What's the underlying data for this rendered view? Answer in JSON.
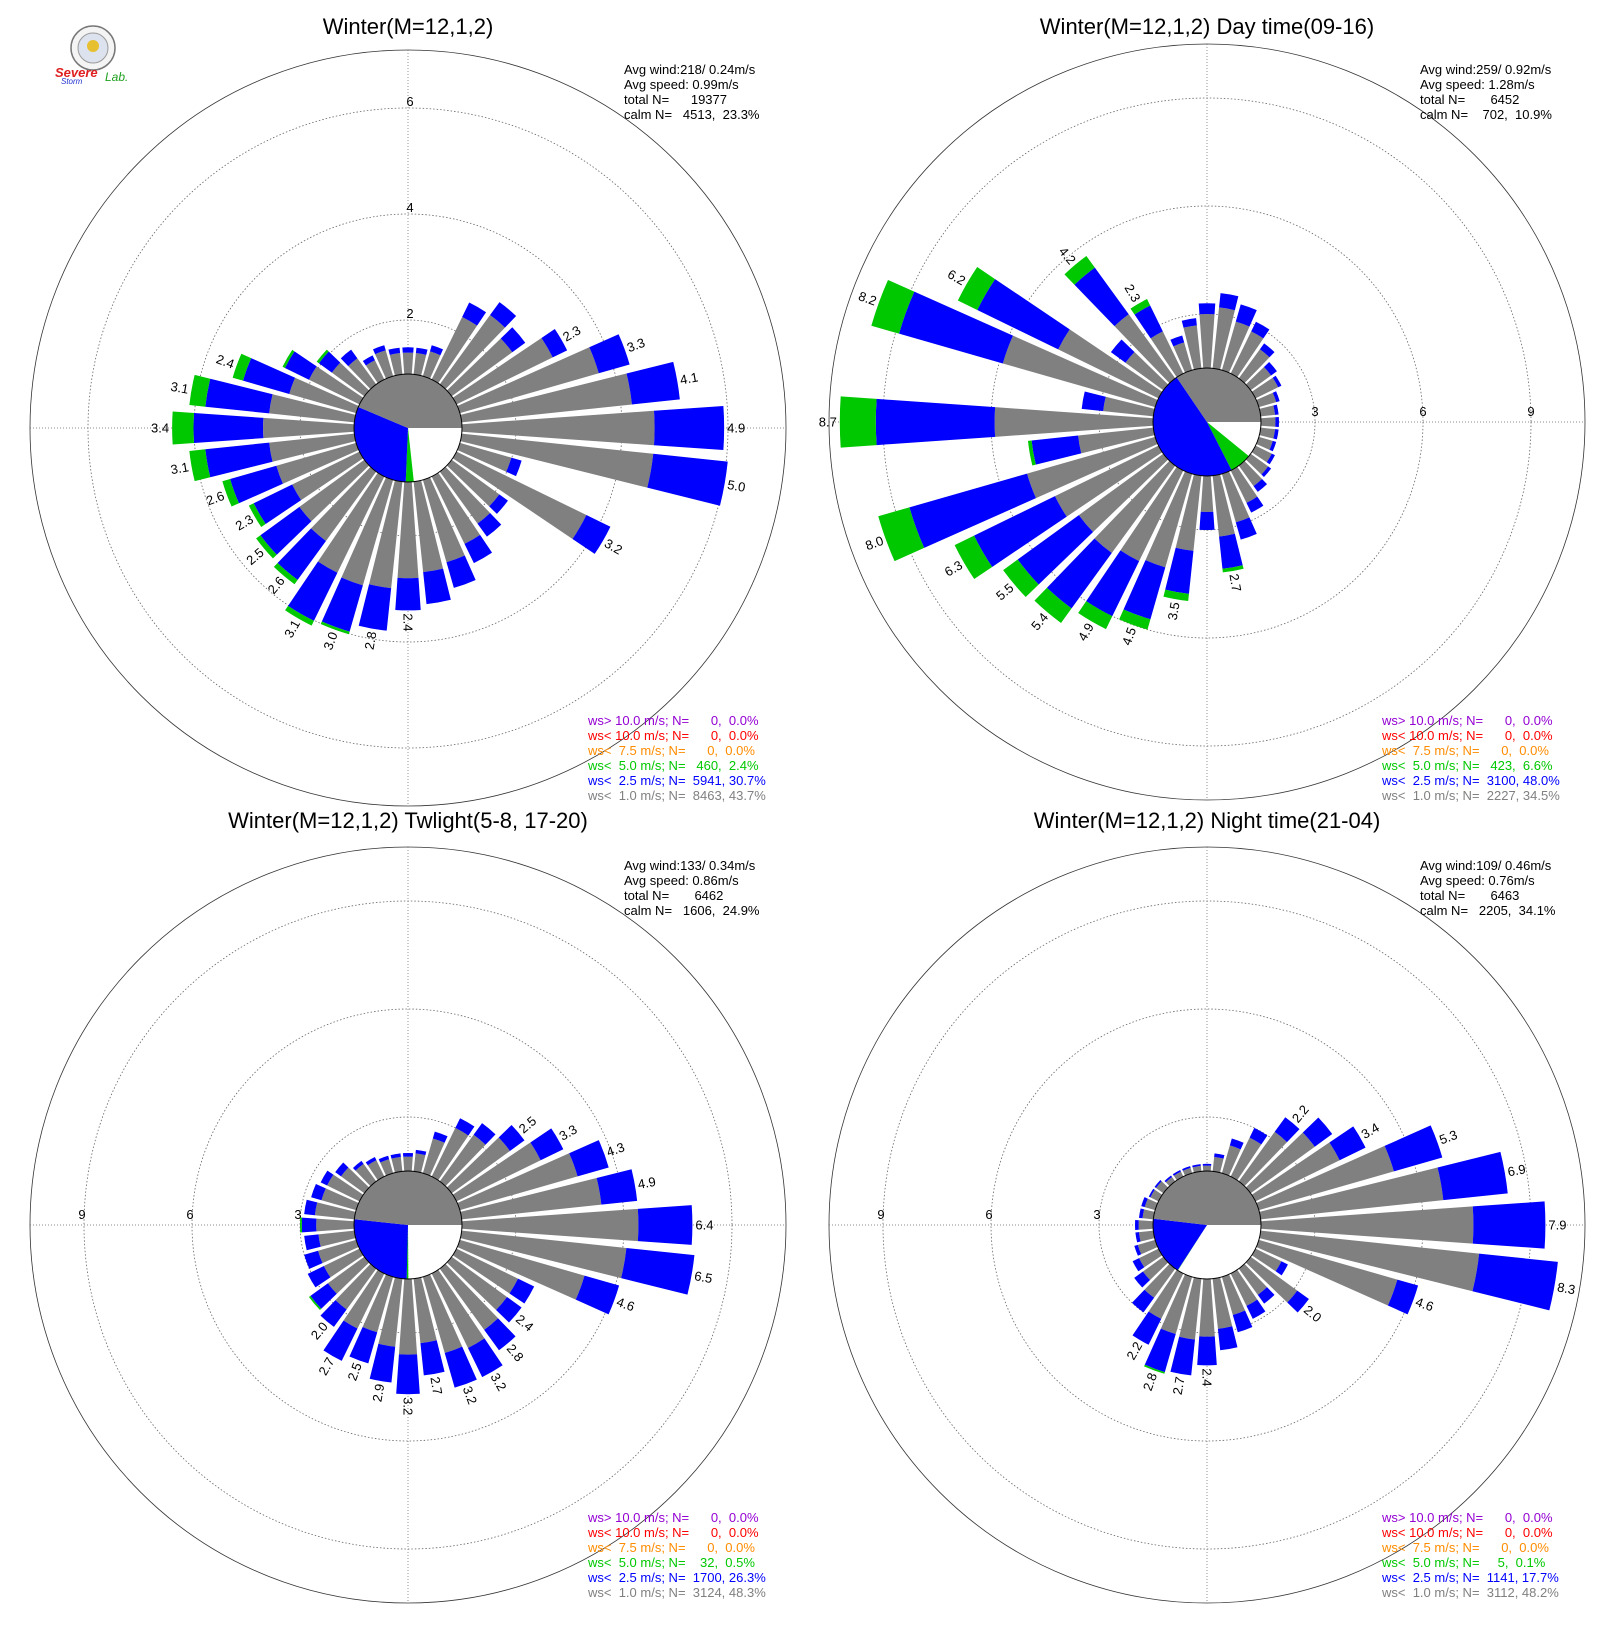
{
  "logo": {
    "text_main": "Severe",
    "text_sub": "Storm",
    "text_lab": "Lab."
  },
  "colors": {
    "calm": "#ffffff",
    "lt1": "#808080",
    "lt2_5": "#0000ff",
    "lt5": "#00c800",
    "lt7_5": "#ff8c00",
    "lt10": "#ff0000",
    "gt10": "#9400d3",
    "grid": "#666666"
  },
  "chart_data": [
    {
      "type": "windrose",
      "title": "Winter(M=12,1,2)",
      "rings": [
        "2",
        "4",
        "6"
      ],
      "stats": [
        "Avg wind:218/ 0.24m/s",
        "Avg speed: 0.99m/s",
        "total N=      19377",
        "calm N=   4513,  23.3%"
      ],
      "legend": [
        "ws> 10.0 m/s; N=      0,  0.0%",
        "ws< 10.0 m/s; N=      0,  0.0%",
        "ws<  7.5 m/s; N=      0,  0.0%",
        "ws<  5.0 m/s; N=   460,  2.4%",
        "ws<  2.5 m/s; N=  5941, 30.7%",
        "ws<  1.0 m/s; N=  8463, 43.7%"
      ],
      "calm_pie": {
        "calm": 23.3,
        "lt1": 43.7,
        "lt2_5": 30.7,
        "lt5": 2.4
      },
      "directions": [
        {
          "deg": 0,
          "t": 0.5,
          "b": 0.1
        },
        {
          "deg": 10,
          "t": 0.5,
          "b": 0.1
        },
        {
          "deg": 20,
          "t": 0.6,
          "b": 0.12
        },
        {
          "deg": 30,
          "t": 1.6,
          "b": 0.3
        },
        {
          "deg": 40,
          "t": 1.9,
          "b": 0.3
        },
        {
          "deg": 50,
          "t": 1.7,
          "b": 0.3
        },
        {
          "deg": 60,
          "t": 2.3,
          "b": 0.3
        },
        {
          "deg": 70,
          "t": 3.3,
          "b": 0.6
        },
        {
          "deg": 80,
          "t": 4.1,
          "b": 0.9
        },
        {
          "deg": 90,
          "t": 4.9,
          "b": 1.3
        },
        {
          "deg": 100,
          "t": 5.0,
          "b": 1.4
        },
        {
          "deg": 110,
          "t": 1.2,
          "b": 0.2
        },
        {
          "deg": 120,
          "t": 3.2,
          "b": 0.5
        },
        {
          "deg": 130,
          "t": 1.3,
          "b": 0.2
        },
        {
          "deg": 140,
          "t": 1.5,
          "b": 0.3
        },
        {
          "deg": 150,
          "t": 1.8,
          "b": 0.4
        },
        {
          "deg": 160,
          "t": 2.1,
          "b": 0.5
        },
        {
          "deg": 170,
          "t": 2.3,
          "b": 0.6
        },
        {
          "deg": 180,
          "t": 2.4,
          "b": 0.6
        },
        {
          "deg": 190,
          "t": 2.8,
          "b": 0.8
        },
        {
          "deg": 200,
          "t": 3.0,
          "b": 0.9,
          "g": 0.05
        },
        {
          "deg": 210,
          "t": 3.1,
          "b": 1.0,
          "g": 0.1
        },
        {
          "deg": 220,
          "t": 2.6,
          "b": 0.9,
          "g": 0.1
        },
        {
          "deg": 230,
          "t": 2.5,
          "b": 0.9,
          "g": 0.1
        },
        {
          "deg": 240,
          "t": 2.3,
          "b": 0.8,
          "g": 0.1
        },
        {
          "deg": 250,
          "t": 2.6,
          "b": 0.9,
          "g": 0.15
        },
        {
          "deg": 260,
          "t": 3.1,
          "b": 1.2,
          "g": 0.3
        },
        {
          "deg": 270,
          "t": 3.4,
          "b": 1.3,
          "g": 0.4
        },
        {
          "deg": 280,
          "t": 3.1,
          "b": 1.2,
          "g": 0.3
        },
        {
          "deg": 290,
          "t": 2.4,
          "b": 0.9,
          "g": 0.2
        },
        {
          "deg": 300,
          "t": 1.6,
          "b": 0.5,
          "g": 0.05
        },
        {
          "deg": 310,
          "t": 1.1,
          "b": 0.3,
          "g": 0.05
        },
        {
          "deg": 320,
          "t": 0.8,
          "b": 0.2
        },
        {
          "deg": 330,
          "t": 0.5,
          "b": 0.1
        },
        {
          "deg": 340,
          "t": 0.6,
          "b": 0.1
        },
        {
          "deg": 350,
          "t": 0.5,
          "b": 0.1
        }
      ],
      "labels": [
        {
          "deg": 60,
          "text": "2.3"
        },
        {
          "deg": 70,
          "text": "3.3"
        },
        {
          "deg": 80,
          "text": "4.1"
        },
        {
          "deg": 90,
          "text": "4.9"
        },
        {
          "deg": 100,
          "text": "5.0"
        },
        {
          "deg": 120,
          "text": "3.2"
        },
        {
          "deg": 180,
          "text": "2.4"
        },
        {
          "deg": 190,
          "text": "2.8"
        },
        {
          "deg": 200,
          "text": "3.0"
        },
        {
          "deg": 210,
          "text": "3.1"
        },
        {
          "deg": 220,
          "text": "2.6"
        },
        {
          "deg": 230,
          "text": "2.5"
        },
        {
          "deg": 240,
          "text": "2.3"
        },
        {
          "deg": 250,
          "text": "2.6"
        },
        {
          "deg": 260,
          "text": "3.1"
        },
        {
          "deg": 270,
          "text": "3.4"
        },
        {
          "deg": 280,
          "text": "3.1"
        },
        {
          "deg": 290,
          "text": "2.4"
        }
      ]
    },
    {
      "type": "windrose",
      "title": "Winter(M=12,1,2) Day time(09-16)",
      "rings": [
        "3",
        "6",
        "9"
      ],
      "stats": [
        "Avg wind:259/ 0.92m/s",
        "Avg speed: 1.28m/s",
        "total N=       6452",
        "calm N=    702,  10.9%"
      ],
      "legend": [
        "ws> 10.0 m/s; N=      0,  0.0%",
        "ws< 10.0 m/s; N=      0,  0.0%",
        "ws<  7.5 m/s; N=      0,  0.0%",
        "ws<  5.0 m/s; N=   423,  6.6%",
        "ws<  2.5 m/s; N=  3100, 48.0%",
        "ws<  1.0 m/s; N=  2227, 34.5%"
      ],
      "calm_pie": {
        "calm": 10.9,
        "lt1": 34.5,
        "lt2_5": 48.0,
        "lt5": 6.6
      },
      "directions": [
        {
          "deg": 0,
          "t": 1.8,
          "b": 0.3
        },
        {
          "deg": 10,
          "t": 2.1,
          "b": 0.4
        },
        {
          "deg": 20,
          "t": 1.9,
          "b": 0.5
        },
        {
          "deg": 30,
          "t": 1.6,
          "b": 0.3
        },
        {
          "deg": 40,
          "t": 1.2,
          "b": 0.2
        },
        {
          "deg": 50,
          "t": 0.9,
          "b": 0.2
        },
        {
          "deg": 60,
          "t": 0.8,
          "b": 0.1
        },
        {
          "deg": 70,
          "t": 0.6,
          "b": 0.1
        },
        {
          "deg": 80,
          "t": 0.5,
          "b": 0.1
        },
        {
          "deg": 90,
          "t": 0.5,
          "b": 0.1
        },
        {
          "deg": 100,
          "t": 0.5,
          "b": 0.1
        },
        {
          "deg": 110,
          "t": 0.5,
          "b": 0.1
        },
        {
          "deg": 120,
          "t": 0.6,
          "b": 0.1
        },
        {
          "deg": 130,
          "t": 0.7,
          "b": 0.1
        },
        {
          "deg": 140,
          "t": 0.9,
          "b": 0.2
        },
        {
          "deg": 150,
          "t": 1.3,
          "b": 0.3
        },
        {
          "deg": 160,
          "t": 1.9,
          "b": 0.5
        },
        {
          "deg": 170,
          "t": 2.7,
          "b": 0.9,
          "g": 0.1
        },
        {
          "deg": 180,
          "t": 1.5,
          "b": 0.5
        },
        {
          "deg": 190,
          "t": 3.5,
          "b": 1.2,
          "g": 0.2
        },
        {
          "deg": 200,
          "t": 4.5,
          "b": 1.5,
          "g": 0.3
        },
        {
          "deg": 210,
          "t": 4.9,
          "b": 1.7,
          "g": 0.4
        },
        {
          "deg": 220,
          "t": 5.4,
          "b": 1.9,
          "g": 0.5
        },
        {
          "deg": 230,
          "t": 5.5,
          "b": 2.1,
          "g": 0.5
        },
        {
          "deg": 240,
          "t": 6.3,
          "b": 2.5,
          "g": 0.6
        },
        {
          "deg": 250,
          "t": 8.0,
          "b": 3.4,
          "g": 0.9
        },
        {
          "deg": 260,
          "t": 3.5,
          "b": 1.3,
          "g": 0.1
        },
        {
          "deg": 270,
          "t": 8.7,
          "b": 3.3,
          "g": 1.0
        },
        {
          "deg": 280,
          "t": 2.0,
          "b": 0.6
        },
        {
          "deg": 290,
          "t": 8.2,
          "b": 3.0,
          "g": 0.8
        },
        {
          "deg": 300,
          "t": 6.2,
          "b": 2.5,
          "g": 0.6
        },
        {
          "deg": 310,
          "t": 1.8,
          "b": 0.5
        },
        {
          "deg": 320,
          "t": 4.2,
          "b": 1.6,
          "g": 0.4
        },
        {
          "deg": 330,
          "t": 2.3,
          "b": 0.8,
          "g": 0.2
        },
        {
          "deg": 340,
          "t": 1.0,
          "b": 0.2
        },
        {
          "deg": 350,
          "t": 1.4,
          "b": 0.2
        }
      ],
      "labels": [
        {
          "deg": 170,
          "text": "2.7"
        },
        {
          "deg": 190,
          "text": "3.5"
        },
        {
          "deg": 200,
          "text": "4.5"
        },
        {
          "deg": 210,
          "text": "4.9"
        },
        {
          "deg": 220,
          "text": "5.4"
        },
        {
          "deg": 230,
          "text": "5.5"
        },
        {
          "deg": 240,
          "text": "6.3"
        },
        {
          "deg": 250,
          "text": "8.0"
        },
        {
          "deg": 270,
          "text": "8.7"
        },
        {
          "deg": 290,
          "text": "8.2"
        },
        {
          "deg": 300,
          "text": "6.2"
        },
        {
          "deg": 320,
          "text": "4.2"
        },
        {
          "deg": 330,
          "text": "2.3"
        }
      ]
    },
    {
      "type": "windrose",
      "title": "Winter(M=12,1,2) Twlight(5-8, 17-20)",
      "rings": [
        "3",
        "6",
        "9"
      ],
      "stats": [
        "Avg wind:133/ 0.34m/s",
        "Avg speed: 0.86m/s",
        "total N=       6462",
        "calm N=   1606,  24.9%"
      ],
      "legend": [
        "ws> 10.0 m/s; N=      0,  0.0%",
        "ws< 10.0 m/s; N=      0,  0.0%",
        "ws<  7.5 m/s; N=      0,  0.0%",
        "ws<  5.0 m/s; N=    32,  0.5%",
        "ws<  2.5 m/s; N=  1700, 26.3%",
        "ws<  1.0 m/s; N=  3124, 48.3%"
      ],
      "calm_pie": {
        "calm": 24.9,
        "lt1": 48.3,
        "lt2_5": 26.3,
        "lt5": 0.5
      },
      "directions": [
        {
          "deg": 0,
          "t": 0.5,
          "b": 0.1
        },
        {
          "deg": 10,
          "t": 0.6,
          "b": 0.1
        },
        {
          "deg": 20,
          "t": 1.2,
          "b": 0.2
        },
        {
          "deg": 30,
          "t": 1.8,
          "b": 0.3
        },
        {
          "deg": 40,
          "t": 2.0,
          "b": 0.4
        },
        {
          "deg": 50,
          "t": 2.5,
          "b": 0.5
        },
        {
          "deg": 60,
          "t": 3.3,
          "b": 0.7
        },
        {
          "deg": 70,
          "t": 4.3,
          "b": 0.9
        },
        {
          "deg": 80,
          "t": 4.9,
          "b": 1.0
        },
        {
          "deg": 90,
          "t": 6.4,
          "b": 1.5
        },
        {
          "deg": 100,
          "t": 6.5,
          "b": 1.9
        },
        {
          "deg": 110,
          "t": 4.6,
          "b": 1.0
        },
        {
          "deg": 120,
          "t": 2.4,
          "b": 0.5
        },
        {
          "deg": 130,
          "t": 2.4,
          "b": 0.5
        },
        {
          "deg": 140,
          "t": 2.8,
          "b": 0.7
        },
        {
          "deg": 150,
          "t": 3.2,
          "b": 0.9
        },
        {
          "deg": 160,
          "t": 3.2,
          "b": 1.0
        },
        {
          "deg": 170,
          "t": 2.7,
          "b": 0.9
        },
        {
          "deg": 180,
          "t": 3.2,
          "b": 1.1
        },
        {
          "deg": 190,
          "t": 2.9,
          "b": 1.0
        },
        {
          "deg": 200,
          "t": 2.5,
          "b": 0.9
        },
        {
          "deg": 210,
          "t": 2.7,
          "b": 1.0
        },
        {
          "deg": 220,
          "t": 2.0,
          "b": 0.6
        },
        {
          "deg": 230,
          "t": 1.9,
          "b": 0.6,
          "g": 0.05
        },
        {
          "deg": 240,
          "t": 1.6,
          "b": 0.5
        },
        {
          "deg": 250,
          "t": 1.5,
          "b": 0.4
        },
        {
          "deg": 260,
          "t": 1.4,
          "b": 0.4
        },
        {
          "deg": 270,
          "t": 1.5,
          "b": 0.4,
          "g": 0.05
        },
        {
          "deg": 280,
          "t": 1.4,
          "b": 0.3
        },
        {
          "deg": 290,
          "t": 1.3,
          "b": 0.3
        },
        {
          "deg": 300,
          "t": 1.2,
          "b": 0.2
        },
        {
          "deg": 310,
          "t": 1.0,
          "b": 0.2
        },
        {
          "deg": 320,
          "t": 0.7,
          "b": 0.1
        },
        {
          "deg": 330,
          "t": 0.6,
          "b": 0.1
        },
        {
          "deg": 340,
          "t": 0.5,
          "b": 0.1
        },
        {
          "deg": 350,
          "t": 0.5,
          "b": 0.1
        }
      ],
      "labels": [
        {
          "deg": 50,
          "text": "2.5"
        },
        {
          "deg": 60,
          "text": "3.3"
        },
        {
          "deg": 70,
          "text": "4.3"
        },
        {
          "deg": 80,
          "text": "4.9"
        },
        {
          "deg": 90,
          "text": "6.4"
        },
        {
          "deg": 100,
          "text": "6.5"
        },
        {
          "deg": 110,
          "text": "4.6"
        },
        {
          "deg": 130,
          "text": "2.4"
        },
        {
          "deg": 140,
          "text": "2.8"
        },
        {
          "deg": 150,
          "text": "3.2"
        },
        {
          "deg": 160,
          "text": "3.2"
        },
        {
          "deg": 170,
          "text": "2.7"
        },
        {
          "deg": 180,
          "text": "3.2"
        },
        {
          "deg": 190,
          "text": "2.9"
        },
        {
          "deg": 200,
          "text": "2.5"
        },
        {
          "deg": 210,
          "text": "2.7"
        },
        {
          "deg": 220,
          "text": "2.0"
        }
      ]
    },
    {
      "type": "windrose",
      "title": "Winter(M=12,1,2) Night time(21-04)",
      "rings": [
        "3",
        "6",
        "9"
      ],
      "stats": [
        "Avg wind:109/ 0.46m/s",
        "Avg speed: 0.76m/s",
        "total N=       6463",
        "calm N=   2205,  34.1%"
      ],
      "legend": [
        "ws> 10.0 m/s; N=      0,  0.0%",
        "ws< 10.0 m/s; N=      0,  0.0%",
        "ws<  7.5 m/s; N=      0,  0.0%",
        "ws<  5.0 m/s; N=     5,  0.1%",
        "ws<  2.5 m/s; N=  1141, 17.7%",
        "ws<  1.0 m/s; N=  3112, 48.2%"
      ],
      "calm_pie": {
        "calm": 34.1,
        "lt1": 48.2,
        "lt2_5": 17.7,
        "lt5": 0.1
      },
      "directions": [
        {
          "deg": 0,
          "t": 0.2,
          "b": 0.05
        },
        {
          "deg": 10,
          "t": 0.5,
          "b": 0.1
        },
        {
          "deg": 20,
          "t": 1.0,
          "b": 0.2
        },
        {
          "deg": 30,
          "t": 1.5,
          "b": 0.3
        },
        {
          "deg": 40,
          "t": 2.2,
          "b": 0.5
        },
        {
          "deg": 50,
          "t": 2.8,
          "b": 0.6
        },
        {
          "deg": 60,
          "t": 3.4,
          "b": 0.8
        },
        {
          "deg": 70,
          "t": 5.3,
          "b": 1.4
        },
        {
          "deg": 80,
          "t": 6.9,
          "b": 1.8
        },
        {
          "deg": 90,
          "t": 7.9,
          "b": 2.0
        },
        {
          "deg": 100,
          "t": 8.3,
          "b": 2.2
        },
        {
          "deg": 110,
          "t": 4.6,
          "b": 0.6
        },
        {
          "deg": 120,
          "t": 1.0,
          "b": 0.2
        },
        {
          "deg": 130,
          "t": 2.0,
          "b": 0.4
        },
        {
          "deg": 140,
          "t": 1.2,
          "b": 0.3
        },
        {
          "deg": 150,
          "t": 1.4,
          "b": 0.4
        },
        {
          "deg": 160,
          "t": 1.6,
          "b": 0.5
        },
        {
          "deg": 170,
          "t": 2.0,
          "b": 0.6
        },
        {
          "deg": 180,
          "t": 2.4,
          "b": 0.8
        },
        {
          "deg": 190,
          "t": 2.7,
          "b": 1.0
        },
        {
          "deg": 200,
          "t": 2.8,
          "b": 1.1,
          "g": 0.05
        },
        {
          "deg": 210,
          "t": 2.2,
          "b": 0.8
        },
        {
          "deg": 220,
          "t": 1.5,
          "b": 0.5
        },
        {
          "deg": 230,
          "t": 1.0,
          "b": 0.3
        },
        {
          "deg": 240,
          "t": 0.8,
          "b": 0.2
        },
        {
          "deg": 250,
          "t": 0.6,
          "b": 0.1
        },
        {
          "deg": 260,
          "t": 0.5,
          "b": 0.1
        },
        {
          "deg": 270,
          "t": 0.5,
          "b": 0.1
        },
        {
          "deg": 280,
          "t": 0.4,
          "b": 0.1
        },
        {
          "deg": 290,
          "t": 0.4,
          "b": 0.1
        },
        {
          "deg": 300,
          "t": 0.3,
          "b": 0.05
        },
        {
          "deg": 310,
          "t": 0.3,
          "b": 0.05
        },
        {
          "deg": 320,
          "t": 0.2,
          "b": 0.05
        },
        {
          "deg": 330,
          "t": 0.2,
          "b": 0.05
        },
        {
          "deg": 340,
          "t": 0.2,
          "b": 0.05
        },
        {
          "deg": 350,
          "t": 0.2,
          "b": 0.05
        }
      ],
      "labels": [
        {
          "deg": 40,
          "text": "2.2"
        },
        {
          "deg": 60,
          "text": "3.4"
        },
        {
          "deg": 70,
          "text": "5.3"
        },
        {
          "deg": 80,
          "text": "6.9"
        },
        {
          "deg": 90,
          "text": "7.9"
        },
        {
          "deg": 100,
          "text": "8.3"
        },
        {
          "deg": 110,
          "text": "4.6"
        },
        {
          "deg": 130,
          "text": "2.0"
        },
        {
          "deg": 180,
          "text": "2.4"
        },
        {
          "deg": 190,
          "text": "2.7"
        },
        {
          "deg": 200,
          "text": "2.8"
        },
        {
          "deg": 210,
          "text": "2.2"
        }
      ]
    }
  ]
}
